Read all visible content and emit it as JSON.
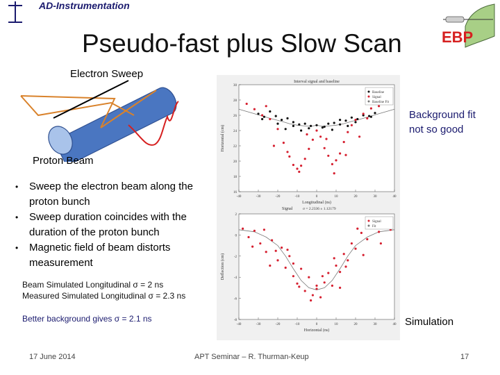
{
  "header": {
    "org": "AD-Instrumentation"
  },
  "title": "Pseudo-fast plus Slow Scan",
  "logo": {
    "text": "EBP",
    "color": "#d62020"
  },
  "labels": {
    "electron_sweep": "Electron Sweep",
    "proton_beam": "Proton Beam",
    "background_fit_line1": "Background fit",
    "background_fit_line2": "not so good",
    "simulation": "Simulation"
  },
  "bullets": [
    "Sweep the electron beam along the proton bunch",
    "Sweep duration coincides with the duration of the  proton bunch",
    "Magnetic field of beam distorts measurement"
  ],
  "sim_results": {
    "line1": "Beam Simulated Longitudinal σ = 2 ns",
    "line2": "Measured Simulated Longitudinal σ = 2.3 ns"
  },
  "better_background": "Better background gives σ = 2.1 ns",
  "footer": {
    "date": "17 June 2014",
    "center": "APT Seminar – R. Thurman-Keup",
    "page": "17"
  },
  "chart_data": [
    {
      "type": "scatter",
      "title": "Interval signal and baseline",
      "xlabel": "Longitudinal (ns)",
      "ylabel": "Horizontal (cm)",
      "xlim": [
        -40,
        40
      ],
      "ylim": [
        16,
        30
      ],
      "x_ticks": [
        "-40",
        "-30",
        "-20",
        "-10",
        "0",
        "10",
        "20",
        "30",
        "40"
      ],
      "y_ticks": [
        "30",
        "28",
        "26",
        "24",
        "22",
        "20",
        "18",
        "16"
      ],
      "legend": [
        "Baseline",
        "Signal",
        "Baseline Fit"
      ],
      "legend_position": "top-right",
      "fit_text": "σ = 2.2336 ± 1.12179",
      "fit_label": "Signal",
      "series": [
        {
          "name": "Baseline",
          "color": "#111111",
          "x": [
            -30,
            -27,
            -24,
            -21,
            -18,
            -15,
            -12,
            -9,
            -6,
            -3,
            0,
            3,
            6,
            9,
            12,
            15,
            18,
            21,
            24,
            27,
            30,
            -28,
            -20,
            -12,
            -4,
            4,
            12,
            20,
            28,
            -16,
            -8,
            8,
            16
          ],
          "y": [
            26.2,
            25.8,
            26.5,
            25.9,
            25.4,
            25.6,
            25.1,
            24.8,
            24.9,
            24.6,
            24.7,
            24.4,
            24.9,
            25.0,
            24.8,
            25.3,
            25.7,
            25.5,
            26.0,
            25.9,
            26.3,
            25.5,
            24.9,
            24.6,
            24.3,
            24.5,
            25.4,
            25.1,
            25.8,
            24.2,
            24.0,
            24.1,
            24.6
          ]
        },
        {
          "name": "Signal",
          "color": "#d62030",
          "x": [
            -36,
            -32,
            -28,
            -24,
            -20,
            -17,
            -14,
            -12,
            -10,
            -8,
            -6,
            -4,
            -2,
            0,
            2,
            4,
            6,
            8,
            10,
            12,
            14,
            16,
            18,
            20,
            24,
            28,
            32,
            36,
            -26,
            -22,
            -15,
            -9,
            -5,
            5,
            9,
            15,
            22,
            26
          ],
          "y": [
            27.5,
            26.8,
            26.0,
            25.5,
            24.2,
            22.4,
            20.6,
            19.5,
            19.0,
            19.4,
            20.3,
            21.6,
            22.8,
            24.0,
            23.2,
            21.7,
            20.7,
            19.6,
            20.1,
            21.0,
            22.5,
            23.8,
            24.7,
            25.4,
            26.2,
            26.9,
            27.2,
            28.0,
            27.2,
            22.0,
            21.2,
            18.6,
            23.5,
            22.9,
            18.4,
            20.8,
            23.2,
            25.6
          ]
        }
      ],
      "fit_curve": {
        "x": [
          -40,
          -32,
          -24,
          -18,
          -14,
          -10,
          -6,
          -2,
          0,
          2,
          6,
          10,
          14,
          18,
          24,
          32,
          40
        ],
        "y": [
          26.8,
          26.2,
          25.6,
          25.2,
          24.9,
          24.7,
          24.6,
          24.6,
          24.7,
          24.6,
          24.6,
          24.7,
          24.9,
          25.2,
          25.6,
          26.2,
          26.8
        ]
      }
    },
    {
      "type": "scatter",
      "title": "",
      "xlabel": "Horizontal (ns)",
      "ylabel": "Deflection (cm)",
      "xlim": [
        -40,
        40
      ],
      "ylim": [
        -8,
        2
      ],
      "x_ticks": [
        "-40",
        "-30",
        "-20",
        "-10",
        "0",
        "10",
        "20",
        "30",
        "40"
      ],
      "y_ticks": [
        "2",
        "0",
        "-2",
        "-4",
        "-6",
        "-8"
      ],
      "legend": [
        "Signal",
        "Fit"
      ],
      "legend_position": "top-right",
      "series": [
        {
          "name": "Signal",
          "color": "#d62030",
          "x": [
            -38,
            -35,
            -32,
            -29,
            -26,
            -23,
            -20,
            -18,
            -16,
            -14,
            -12,
            -10,
            -8,
            -6,
            -4,
            -2,
            0,
            2,
            4,
            6,
            8,
            10,
            12,
            14,
            16,
            18,
            20,
            23,
            26,
            29,
            32,
            35,
            38,
            -33,
            -27,
            -21,
            -15,
            -9,
            -3,
            3,
            9,
            15,
            21,
            27,
            33,
            -24,
            -12,
            0,
            12,
            24
          ],
          "y": [
            0.6,
            -0.2,
            0.4,
            -0.8,
            -1.6,
            -0.5,
            -2.4,
            -1.2,
            -3.1,
            -2.0,
            -3.9,
            -4.6,
            -3.2,
            -5.3,
            -4.0,
            -5.7,
            -4.8,
            -5.9,
            -4.5,
            -3.6,
            -4.8,
            -2.9,
            -3.5,
            -1.8,
            -2.4,
            -0.8,
            -1.3,
            0.2,
            -0.4,
            0.9,
            0.3,
            1.1,
            0.5,
            -1.1,
            0.5,
            -1.5,
            -1.4,
            -4.9,
            -6.2,
            -3.9,
            -2.2,
            -3.0,
            0.6,
            0.9,
            -0.8,
            -2.9,
            -2.7,
            -5.1,
            -5.0,
            -1.9
          ]
        }
      ],
      "fit_curve": {
        "x": [
          -40,
          -32,
          -26,
          -20,
          -16,
          -12,
          -8,
          -4,
          0,
          4,
          8,
          12,
          16,
          20,
          26,
          32,
          40
        ],
        "y": [
          0.5,
          0.3,
          -0.2,
          -1.0,
          -2.0,
          -3.2,
          -4.3,
          -5.0,
          -5.2,
          -5.0,
          -4.3,
          -3.2,
          -2.0,
          -1.0,
          -0.2,
          0.3,
          0.5
        ]
      }
    }
  ]
}
